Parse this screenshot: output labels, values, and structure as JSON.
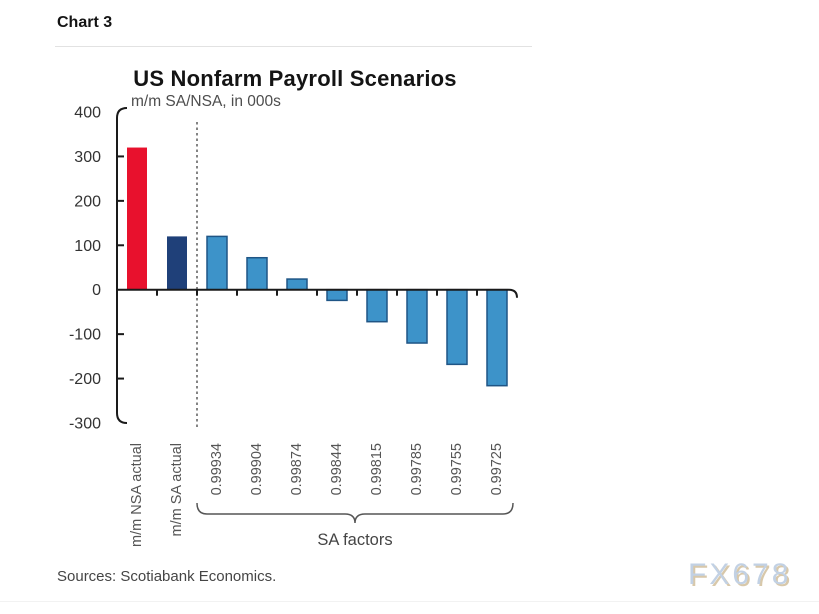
{
  "page": {
    "chart_label": "Chart 3",
    "sources": "Sources: Scotiabank Economics.",
    "watermark": "FX678"
  },
  "chart_data": {
    "type": "bar",
    "title": "US Nonfarm Payroll Scenarios",
    "subtitle": "m/m SA/NSA, in 000s",
    "categories": [
      "m/m NSA actual",
      "m/m SA actual",
      "0.99934",
      "0.99904",
      "0.99874",
      "0.99844",
      "0.99815",
      "0.99785",
      "0.99755",
      "0.99725"
    ],
    "values": [
      320,
      120,
      120,
      72,
      24,
      -24,
      -72,
      -120,
      -168,
      -216
    ],
    "bar_fills": [
      "#e8112d",
      "#1f4079",
      "#3d93c9",
      "#3d93c9",
      "#3d93c9",
      "#3d93c9",
      "#3d93c9",
      "#3d93c9",
      "#3d93c9",
      "#3d93c9"
    ],
    "bar_strokes": [
      "none",
      "none",
      "#1f5585",
      "#1f5585",
      "#1f5585",
      "#1f5585",
      "#1f5585",
      "#1f5585",
      "#1f5585",
      "#1f5585"
    ],
    "ylim": [
      -300,
      400
    ],
    "yticks": [
      400,
      300,
      200,
      100,
      0,
      -100,
      -200,
      -300
    ],
    "grid": false,
    "legend_position": "none",
    "separator_after_index": 1,
    "group_bracket": {
      "label": "SA factors",
      "start_index": 2,
      "end_index": 9
    },
    "colors": {
      "axis": "#1a1a1a",
      "ytick_label": "#333333",
      "xtick_label": "#555555",
      "bracket": "#555555",
      "separator": "#333333"
    }
  }
}
